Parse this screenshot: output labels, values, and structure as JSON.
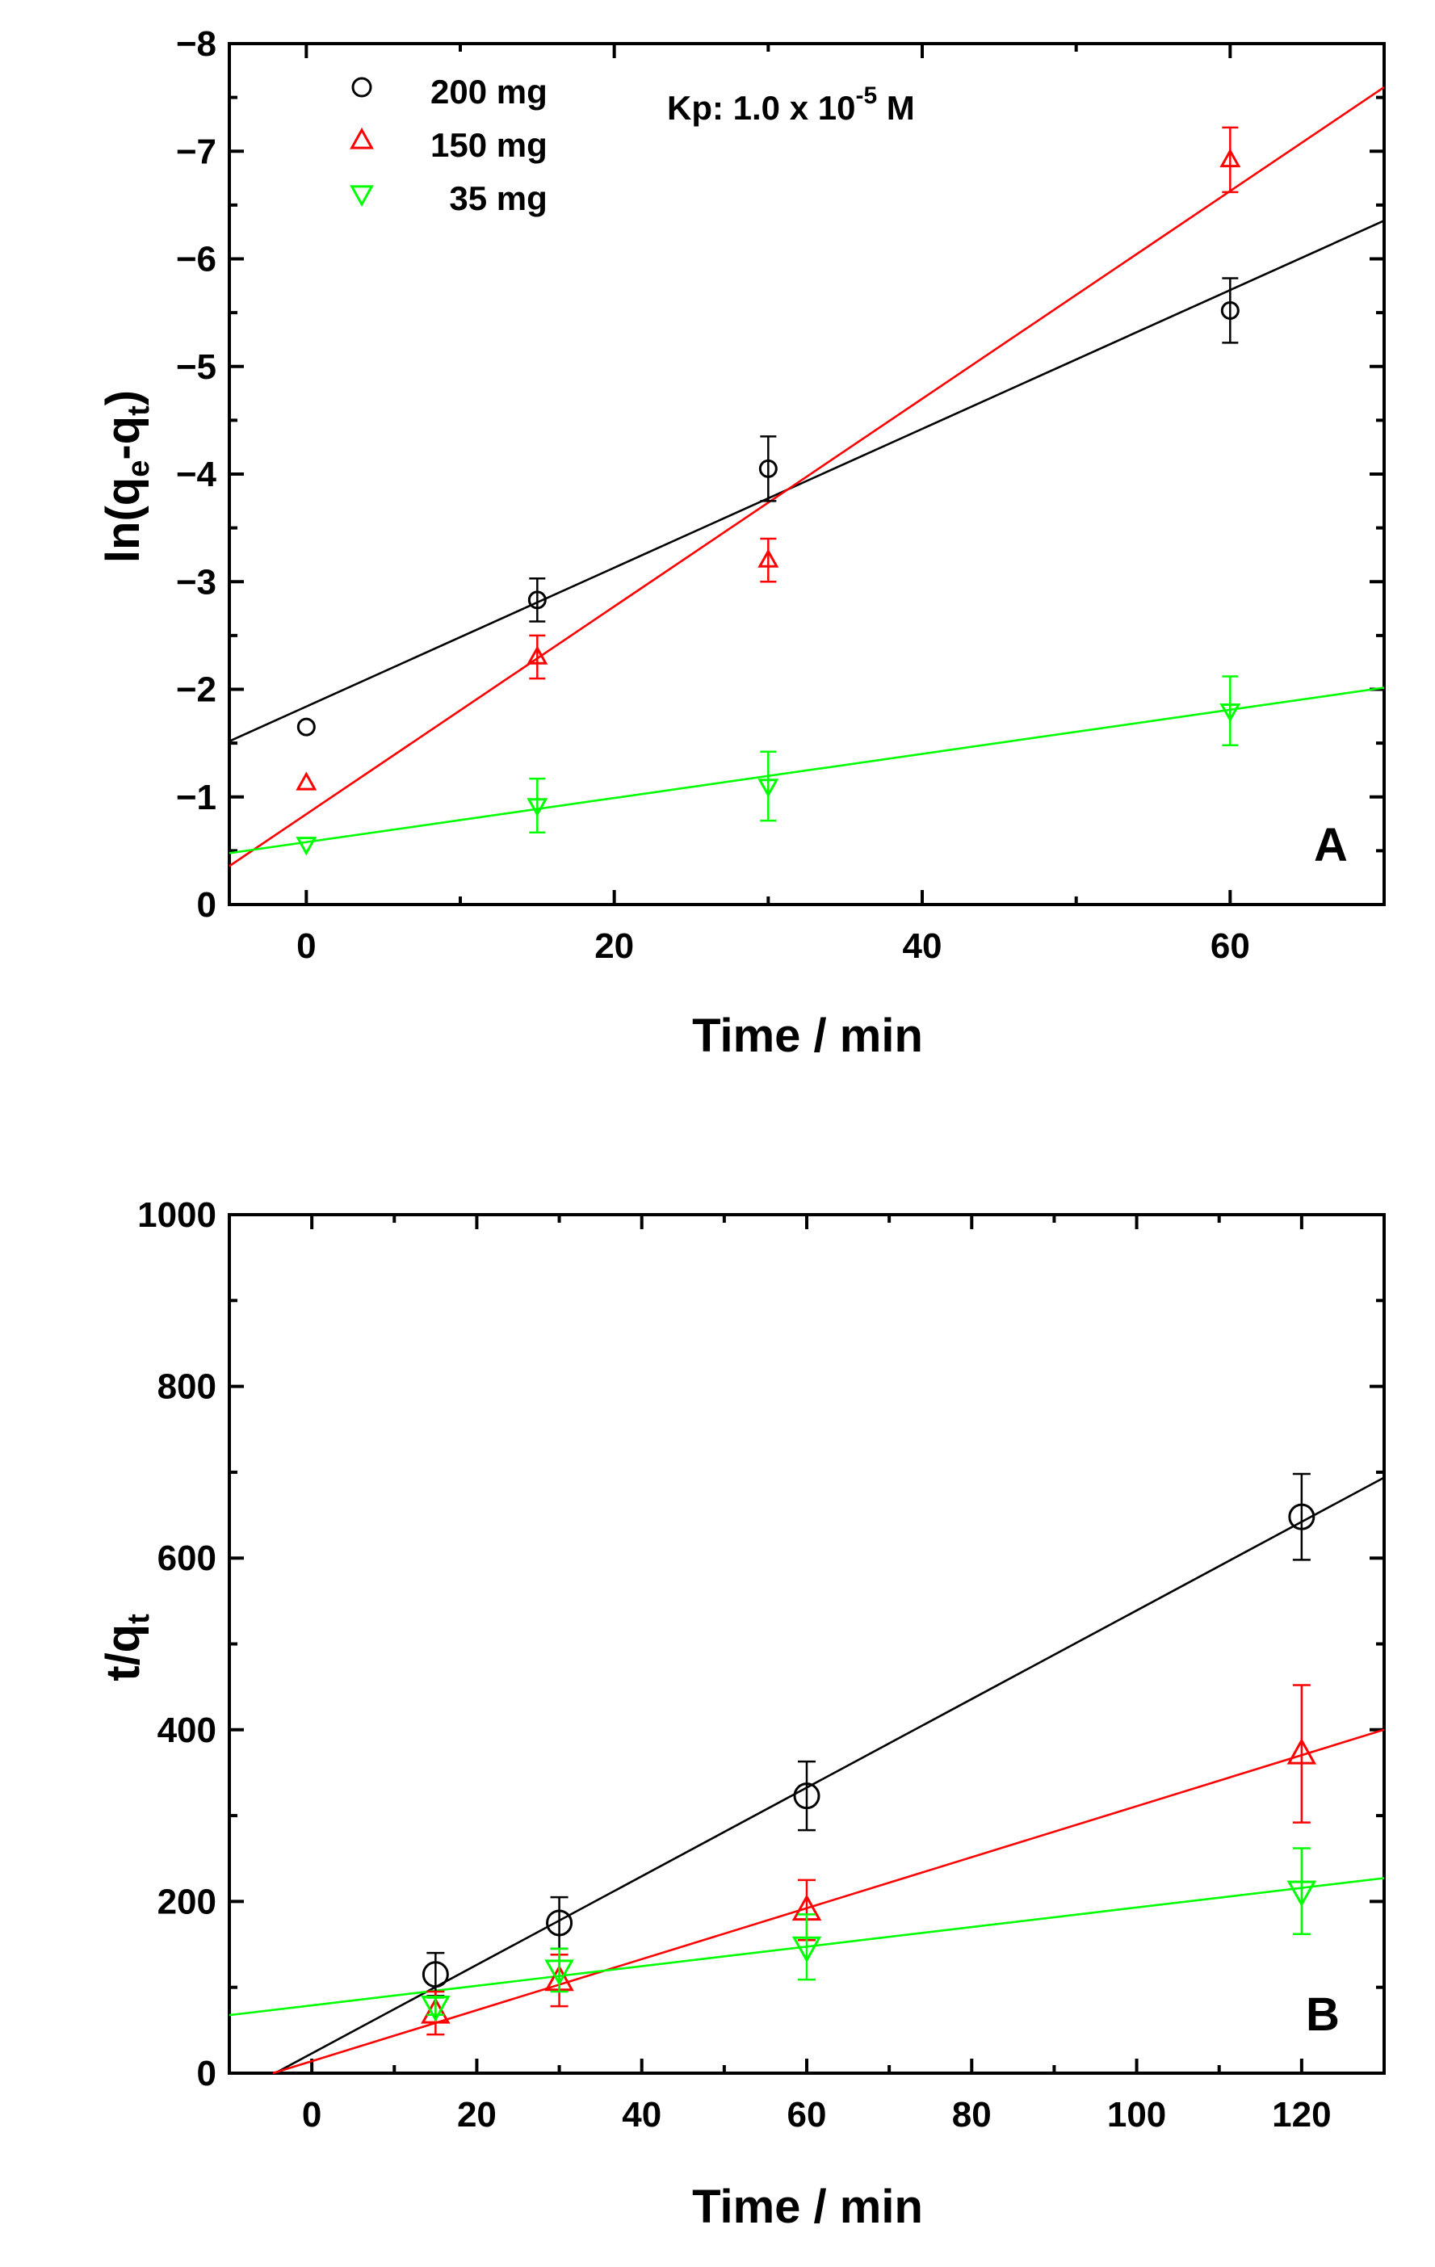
{
  "chart_data": [
    {
      "panel": "A",
      "type": "scatter",
      "panel_label": "A",
      "annotation": {
        "main": "Kp: 1.0 x 10",
        "sup": "-5",
        "tail": " M"
      },
      "xlabel": "Time / min",
      "ylabel": {
        "main": "ln(q",
        "sub1": "e",
        "mid": "-q",
        "sub2": "t",
        "close": ")"
      },
      "xlim": [
        -5,
        70
      ],
      "ylim": [
        0,
        -8
      ],
      "x_ticks": [
        0,
        20,
        40,
        60
      ],
      "x_tick_labels": [
        "0",
        "20",
        "40",
        "60"
      ],
      "y_ticks": [
        0,
        -1,
        -2,
        -3,
        -4,
        -5,
        -6,
        -7,
        -8
      ],
      "y_tick_labels": [
        "0",
        "−1",
        "−2",
        "−3",
        "−4",
        "−5",
        "−6",
        "−7",
        "−8"
      ],
      "legend": [
        {
          "label": "200 mg",
          "marker": "circle",
          "color": "#000000"
        },
        {
          "label": "150 mg",
          "marker": "triangle-up",
          "color": "#ff0000"
        },
        {
          "label": "  35 mg",
          "marker": "triangle-down",
          "color": "#00ff00"
        }
      ],
      "series": [
        {
          "name": "200 mg",
          "marker": "circle",
          "color": "#000000",
          "x": [
            0,
            15,
            30,
            60
          ],
          "y": [
            -1.65,
            -2.83,
            -4.05,
            -5.52
          ],
          "err": [
            null,
            0.2,
            0.3,
            0.3
          ],
          "fit": {
            "slope": -0.0645,
            "intercept": -1.84
          }
        },
        {
          "name": "150 mg",
          "marker": "triangle-up",
          "color": "#ff0000",
          "x": [
            0,
            15,
            30,
            60
          ],
          "y": [
            -1.13,
            -2.3,
            -3.2,
            -6.92
          ],
          "err": [
            null,
            0.2,
            0.2,
            0.3
          ],
          "fit": {
            "slope": -0.0965,
            "intercept": -0.84
          }
        },
        {
          "name": "35 mg",
          "marker": "triangle-down",
          "color": "#00ff00",
          "x": [
            0,
            15,
            30,
            60
          ],
          "y": [
            -0.56,
            -0.92,
            -1.1,
            -1.8
          ],
          "err": [
            null,
            0.25,
            0.32,
            0.32
          ],
          "fit": {
            "slope": -0.0205,
            "intercept": -0.58
          }
        }
      ]
    },
    {
      "panel": "B",
      "type": "scatter",
      "panel_label": "B",
      "xlabel": "Time / min",
      "ylabel": {
        "main": "t/q",
        "sub": "t"
      },
      "xlim": [
        -10,
        130
      ],
      "ylim": [
        0,
        1000
      ],
      "x_ticks": [
        0,
        20,
        40,
        60,
        80,
        100,
        120
      ],
      "x_tick_labels": [
        "0",
        "20",
        "40",
        "60",
        "80",
        "100",
        "120"
      ],
      "y_ticks": [
        0,
        200,
        400,
        600,
        800,
        1000
      ],
      "y_tick_labels": [
        "0",
        "200",
        "400",
        "600",
        "800",
        "1000"
      ],
      "series": [
        {
          "name": "200 mg",
          "marker": "circle",
          "color": "#000000",
          "x": [
            15,
            30,
            60,
            120
          ],
          "y": [
            115,
            175,
            323,
            648
          ],
          "err": [
            25,
            30,
            40,
            50
          ],
          "fit": {
            "slope": 5.16,
            "intercept": 23
          }
        },
        {
          "name": "150 mg",
          "marker": "triangle-up",
          "color": "#ff0000",
          "x": [
            15,
            30,
            60,
            120
          ],
          "y": [
            70,
            108,
            190,
            372
          ],
          "err": [
            25,
            30,
            35,
            80
          ],
          "fit": {
            "slope": 2.97,
            "intercept": 14
          }
        },
        {
          "name": "35 mg",
          "marker": "triangle-down",
          "color": "#00ff00",
          "x": [
            15,
            30,
            60,
            120
          ],
          "y": [
            78,
            120,
            147,
            212
          ],
          "err": [
            10,
            25,
            38,
            50
          ],
          "fit": {
            "slope": 1.14,
            "intercept": 79
          }
        }
      ]
    }
  ]
}
